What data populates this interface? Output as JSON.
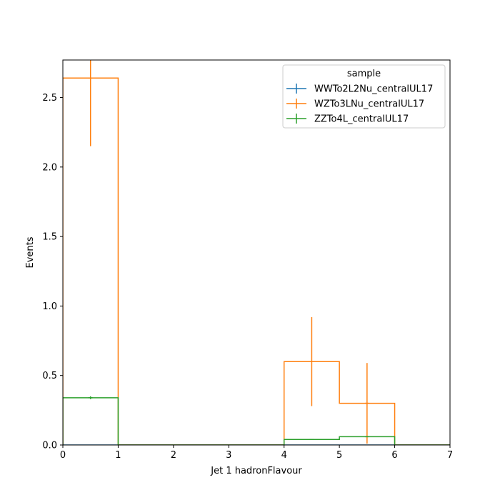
{
  "chart_data": {
    "type": "histogram-step",
    "xlabel": "Jet 1 hadronFlavour",
    "ylabel": "Events",
    "xlim": [
      0,
      7
    ],
    "ylim": [
      0,
      2.77
    ],
    "xticks": [
      0,
      1,
      2,
      3,
      4,
      5,
      6,
      7
    ],
    "yticks": [
      0.0,
      0.5,
      1.0,
      1.5,
      2.0,
      2.5
    ],
    "xtick_labels": [
      "0",
      "1",
      "2",
      "3",
      "4",
      "5",
      "6",
      "7"
    ],
    "ytick_labels": [
      "0.0",
      "0.5",
      "1.0",
      "1.5",
      "2.0",
      "2.5"
    ],
    "bin_edges": [
      0,
      1,
      2,
      3,
      4,
      5,
      6,
      7
    ],
    "legend": {
      "title": "sample",
      "placement": "upper-right"
    },
    "series": [
      {
        "name": "WWTo2L2Nu_centralUL17",
        "color": "#1f77b4",
        "values": [
          0,
          0,
          0,
          0,
          0,
          0,
          0
        ],
        "errors": [
          0,
          0,
          0,
          0,
          0,
          0,
          0
        ]
      },
      {
        "name": "WZTo3LNu_centralUL17",
        "color": "#ff7f0e",
        "values": [
          2.64,
          0,
          0,
          0,
          0.6,
          0.3,
          0
        ],
        "errors": [
          0.49,
          0,
          0,
          0,
          0.32,
          0.29,
          0
        ]
      },
      {
        "name": "ZZTo4L_centralUL17",
        "color": "#2ca02c",
        "values": [
          0.34,
          0,
          0,
          0,
          0.04,
          0.06,
          0
        ],
        "errors": [
          0.01,
          0,
          0,
          0,
          0,
          0,
          0
        ]
      }
    ]
  }
}
